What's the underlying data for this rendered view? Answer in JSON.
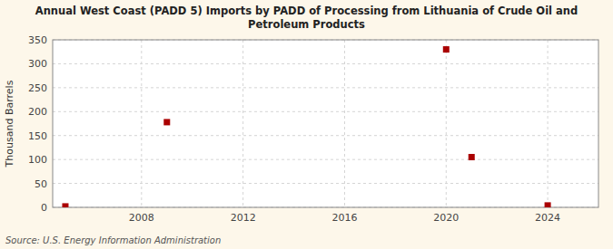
{
  "chart_data": {
    "type": "scatter",
    "title": "Annual West Coast (PADD 5) Imports by PADD of Processing from Lithuania of Crude Oil and\nPetroleum Products",
    "y_label": "Thousand Barrels",
    "source": "Source: U.S. Energy Information Administration",
    "x": [
      2005,
      2009,
      2020,
      2021,
      2024
    ],
    "values": [
      2,
      178,
      330,
      105,
      4
    ],
    "xlim": [
      2004.5,
      2026
    ],
    "ylim": [
      0,
      350
    ],
    "xticks": [
      2008,
      2012,
      2016,
      2020,
      2024
    ],
    "yticks": [
      0,
      50,
      100,
      150,
      200,
      250,
      300,
      350
    ],
    "color": "#aa0000",
    "marker": "square",
    "grid": true
  }
}
